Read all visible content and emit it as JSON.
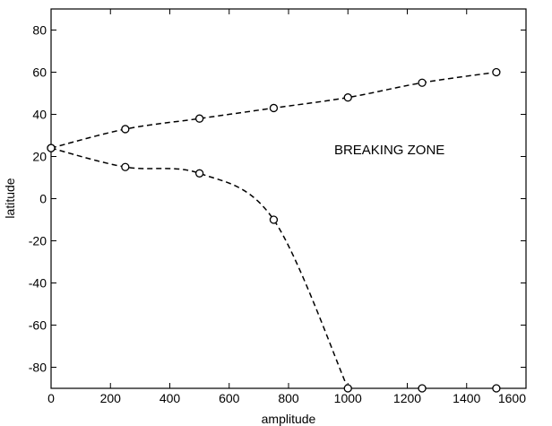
{
  "chart_data": {
    "type": "line",
    "title": "",
    "xlabel": "amplitude",
    "ylabel": "latitude",
    "xlim": [
      0,
      1600
    ],
    "ylim": [
      -90,
      90
    ],
    "x_ticks": [
      0,
      200,
      400,
      600,
      800,
      1000,
      1200,
      1400,
      1600
    ],
    "y_ticks": [
      -80,
      -60,
      -40,
      -20,
      0,
      20,
      40,
      60,
      80
    ],
    "grid": false,
    "legend": "none",
    "series": [
      {
        "style": "dashed",
        "color": "#000000",
        "points": [
          [
            0,
            24
          ],
          [
            250,
            33
          ],
          [
            500,
            38
          ],
          [
            750,
            43
          ],
          [
            1000,
            48
          ],
          [
            1250,
            55
          ],
          [
            1500,
            60
          ]
        ]
      },
      {
        "style": "dashed",
        "color": "#000000",
        "points": [
          [
            0,
            24
          ],
          [
            250,
            15
          ],
          [
            500,
            12
          ],
          [
            750,
            -10
          ],
          [
            1000,
            -90
          ]
        ]
      }
    ],
    "extra_markers": [
      [
        1250,
        -90
      ],
      [
        1500,
        -90
      ]
    ],
    "annotations": [
      {
        "text": "BREAKING ZONE",
        "x": 1140,
        "y": 21
      }
    ]
  }
}
